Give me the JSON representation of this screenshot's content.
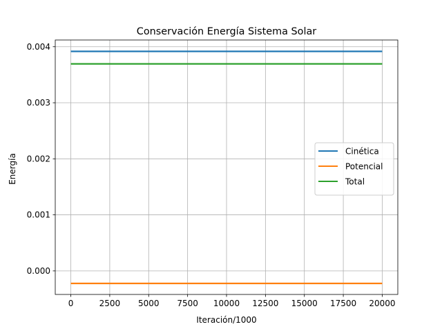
{
  "chart_data": {
    "type": "line",
    "title": "Conservación Energía Sistema Solar",
    "xlabel": "Iteración/1000",
    "ylabel": "Energía",
    "xlim": [
      -1000,
      21000
    ],
    "ylim": [
      -0.00042,
      0.00412
    ],
    "xticks": [
      0,
      2500,
      5000,
      7500,
      10000,
      12500,
      15000,
      17500,
      20000
    ],
    "xtick_labels": [
      "0",
      "2500",
      "5000",
      "7500",
      "10000",
      "12500",
      "15000",
      "17500",
      "20000"
    ],
    "yticks": [
      0.0,
      0.001,
      0.002,
      0.003,
      0.004
    ],
    "ytick_labels": [
      "0.000",
      "0.001",
      "0.002",
      "0.003",
      "0.004"
    ],
    "grid": true,
    "legend_position": "center-right",
    "x": [
      0,
      2500,
      5000,
      7500,
      10000,
      12500,
      15000,
      17500,
      20000
    ],
    "series": [
      {
        "name": "Cinética",
        "color": "#1f77b4",
        "values": [
          0.003917,
          0.003917,
          0.003917,
          0.003917,
          0.003917,
          0.003917,
          0.003917,
          0.003917,
          0.003917
        ]
      },
      {
        "name": "Potencial",
        "color": "#ff7f0e",
        "values": [
          -0.000223,
          -0.000223,
          -0.000223,
          -0.000223,
          -0.000223,
          -0.000223,
          -0.000223,
          -0.000223,
          -0.000223
        ]
      },
      {
        "name": "Total",
        "color": "#2ca02c",
        "values": [
          0.003694,
          0.003694,
          0.003694,
          0.003694,
          0.003694,
          0.003694,
          0.003694,
          0.003694,
          0.003694
        ]
      }
    ]
  }
}
